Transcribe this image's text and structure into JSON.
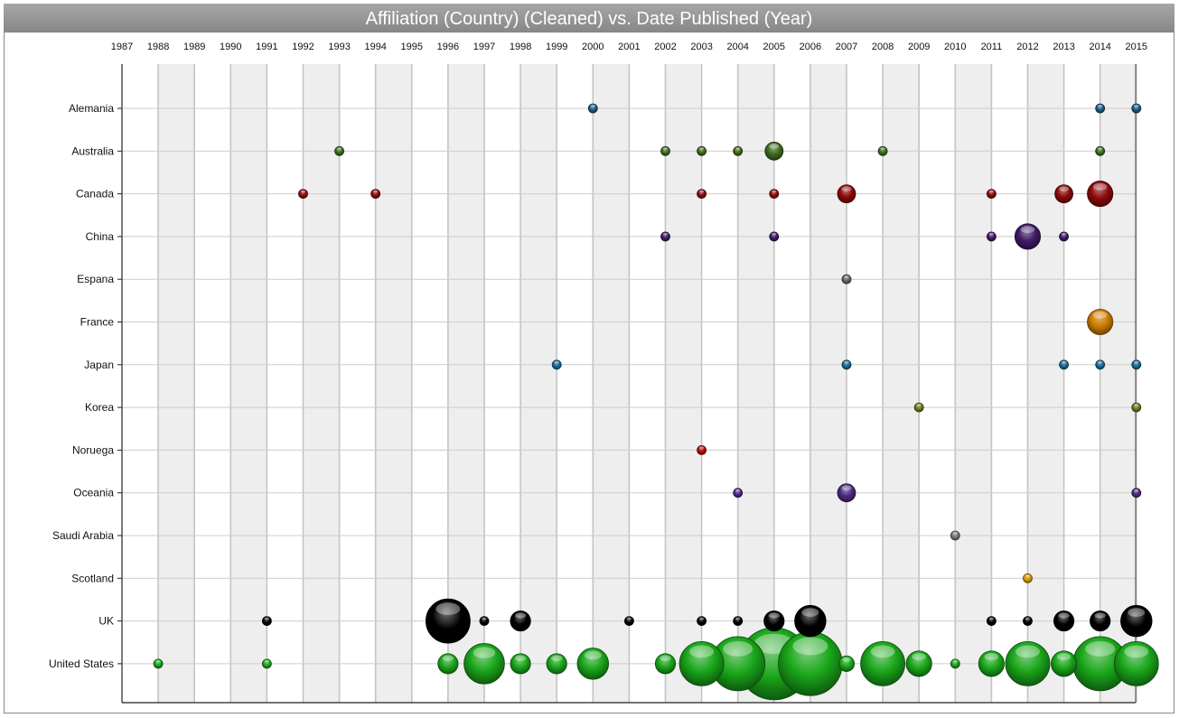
{
  "chart_data": {
    "type": "scatter",
    "title": "Affiliation (Country) (Cleaned) vs. Date Published (Year)",
    "x_categories": [
      "1987",
      "1988",
      "1989",
      "1990",
      "1991",
      "1992",
      "1993",
      "1994",
      "1995",
      "1996",
      "1997",
      "1998",
      "1999",
      "2000",
      "2001",
      "2002",
      "2003",
      "2004",
      "2005",
      "2006",
      "2007",
      "2008",
      "2009",
      "2010",
      "2011",
      "2012",
      "2013",
      "2014",
      "2015"
    ],
    "y_categories": [
      "Alemania",
      "Australia",
      "Canada",
      "China",
      "Espana",
      "France",
      "Japan",
      "Korea",
      "Noruega",
      "Oceania",
      "Saudi Arabia",
      "Scotland",
      "UK",
      "United States"
    ],
    "series": [
      {
        "color": "#1a5e8a",
        "points": [
          {
            "x": "2000",
            "y": "Alemania",
            "size": 1
          },
          {
            "x": "2014",
            "y": "Alemania",
            "size": 1
          },
          {
            "x": "2015",
            "y": "Alemania",
            "size": 1
          }
        ]
      },
      {
        "color": "#3d6b1e",
        "points": [
          {
            "x": "1993",
            "y": "Australia",
            "size": 1
          },
          {
            "x": "2002",
            "y": "Australia",
            "size": 1
          },
          {
            "x": "2003",
            "y": "Australia",
            "size": 1
          },
          {
            "x": "2004",
            "y": "Australia",
            "size": 1
          },
          {
            "x": "2005",
            "y": "Australia",
            "size": 4
          },
          {
            "x": "2008",
            "y": "Australia",
            "size": 1
          },
          {
            "x": "2014",
            "y": "Australia",
            "size": 1
          }
        ]
      },
      {
        "color": "#8a0a0a",
        "points": [
          {
            "x": "1992",
            "y": "Canada",
            "size": 1
          },
          {
            "x": "1994",
            "y": "Canada",
            "size": 1
          },
          {
            "x": "2003",
            "y": "Canada",
            "size": 1
          },
          {
            "x": "2005",
            "y": "Canada",
            "size": 1
          },
          {
            "x": "2007",
            "y": "Canada",
            "size": 4
          },
          {
            "x": "2011",
            "y": "Canada",
            "size": 1
          },
          {
            "x": "2013",
            "y": "Canada",
            "size": 4
          },
          {
            "x": "2014",
            "y": "Canada",
            "size": 8
          }
        ]
      },
      {
        "color": "#3f1a66",
        "points": [
          {
            "x": "2002",
            "y": "China",
            "size": 1
          },
          {
            "x": "2005",
            "y": "China",
            "size": 1
          },
          {
            "x": "2011",
            "y": "China",
            "size": 1
          },
          {
            "x": "2012",
            "y": "China",
            "size": 8
          },
          {
            "x": "2013",
            "y": "China",
            "size": 1
          }
        ]
      },
      {
        "color": "#666666",
        "points": [
          {
            "x": "2007",
            "y": "Espana",
            "size": 1
          }
        ]
      },
      {
        "color": "#cc7a00",
        "points": [
          {
            "x": "2014",
            "y": "France",
            "size": 8
          }
        ]
      },
      {
        "color": "#1a6a96",
        "points": [
          {
            "x": "1999",
            "y": "Japan",
            "size": 1
          },
          {
            "x": "2007",
            "y": "Japan",
            "size": 1
          },
          {
            "x": "2013",
            "y": "Japan",
            "size": 1
          },
          {
            "x": "2014",
            "y": "Japan",
            "size": 1
          },
          {
            "x": "2015",
            "y": "Japan",
            "size": 1
          }
        ]
      },
      {
        "color": "#6b7a1a",
        "points": [
          {
            "x": "2009",
            "y": "Korea",
            "size": 1
          },
          {
            "x": "2015",
            "y": "Korea",
            "size": 1
          }
        ]
      },
      {
        "color": "#b00a0a",
        "points": [
          {
            "x": "2003",
            "y": "Noruega",
            "size": 1
          }
        ]
      },
      {
        "color": "#4a2a80",
        "points": [
          {
            "x": "2004",
            "y": "Oceania",
            "size": 1
          },
          {
            "x": "2007",
            "y": "Oceania",
            "size": 4
          },
          {
            "x": "2015",
            "y": "Oceania",
            "size": 1
          }
        ]
      },
      {
        "color": "#777777",
        "points": [
          {
            "x": "2010",
            "y": "Saudi Arabia",
            "size": 1
          }
        ]
      },
      {
        "color": "#d49a00",
        "points": [
          {
            "x": "2012",
            "y": "Scotland",
            "size": 1
          }
        ]
      },
      {
        "color": "#000000",
        "points": [
          {
            "x": "1991",
            "y": "UK",
            "size": 1
          },
          {
            "x": "1996",
            "y": "UK",
            "size": 24
          },
          {
            "x": "1997",
            "y": "UK",
            "size": 1
          },
          {
            "x": "1998",
            "y": "UK",
            "size": 5
          },
          {
            "x": "2001",
            "y": "UK",
            "size": 1
          },
          {
            "x": "2003",
            "y": "UK",
            "size": 1
          },
          {
            "x": "2004",
            "y": "UK",
            "size": 1
          },
          {
            "x": "2005",
            "y": "UK",
            "size": 5
          },
          {
            "x": "2006",
            "y": "UK",
            "size": 12
          },
          {
            "x": "2011",
            "y": "UK",
            "size": 1
          },
          {
            "x": "2012",
            "y": "UK",
            "size": 1
          },
          {
            "x": "2013",
            "y": "UK",
            "size": 5
          },
          {
            "x": "2014",
            "y": "UK",
            "size": 5
          },
          {
            "x": "2015",
            "y": "UK",
            "size": 12
          }
        ]
      },
      {
        "color": "#1aa61a",
        "points": [
          {
            "x": "1988",
            "y": "United States",
            "size": 1
          },
          {
            "x": "1991",
            "y": "United States",
            "size": 1
          },
          {
            "x": "1996",
            "y": "United States",
            "size": 5
          },
          {
            "x": "1997",
            "y": "United States",
            "size": 20
          },
          {
            "x": "1998",
            "y": "United States",
            "size": 5
          },
          {
            "x": "1999",
            "y": "United States",
            "size": 5
          },
          {
            "x": "2000",
            "y": "United States",
            "size": 12
          },
          {
            "x": "2002",
            "y": "United States",
            "size": 5
          },
          {
            "x": "2003",
            "y": "United States",
            "size": 24
          },
          {
            "x": "2004",
            "y": "United States",
            "size": 36
          },
          {
            "x": "2005",
            "y": "United States",
            "size": 64
          },
          {
            "x": "2006",
            "y": "United States",
            "size": 50
          },
          {
            "x": "2007",
            "y": "United States",
            "size": 3
          },
          {
            "x": "2008",
            "y": "United States",
            "size": 24
          },
          {
            "x": "2009",
            "y": "United States",
            "size": 8
          },
          {
            "x": "2010",
            "y": "United States",
            "size": 1
          },
          {
            "x": "2011",
            "y": "United States",
            "size": 8
          },
          {
            "x": "2012",
            "y": "United States",
            "size": 24
          },
          {
            "x": "2013",
            "y": "United States",
            "size": 8
          },
          {
            "x": "2014",
            "y": "United States",
            "size": 36
          },
          {
            "x": "2015",
            "y": "United States",
            "size": 24
          }
        ]
      }
    ],
    "grid": true,
    "legend": "none"
  }
}
